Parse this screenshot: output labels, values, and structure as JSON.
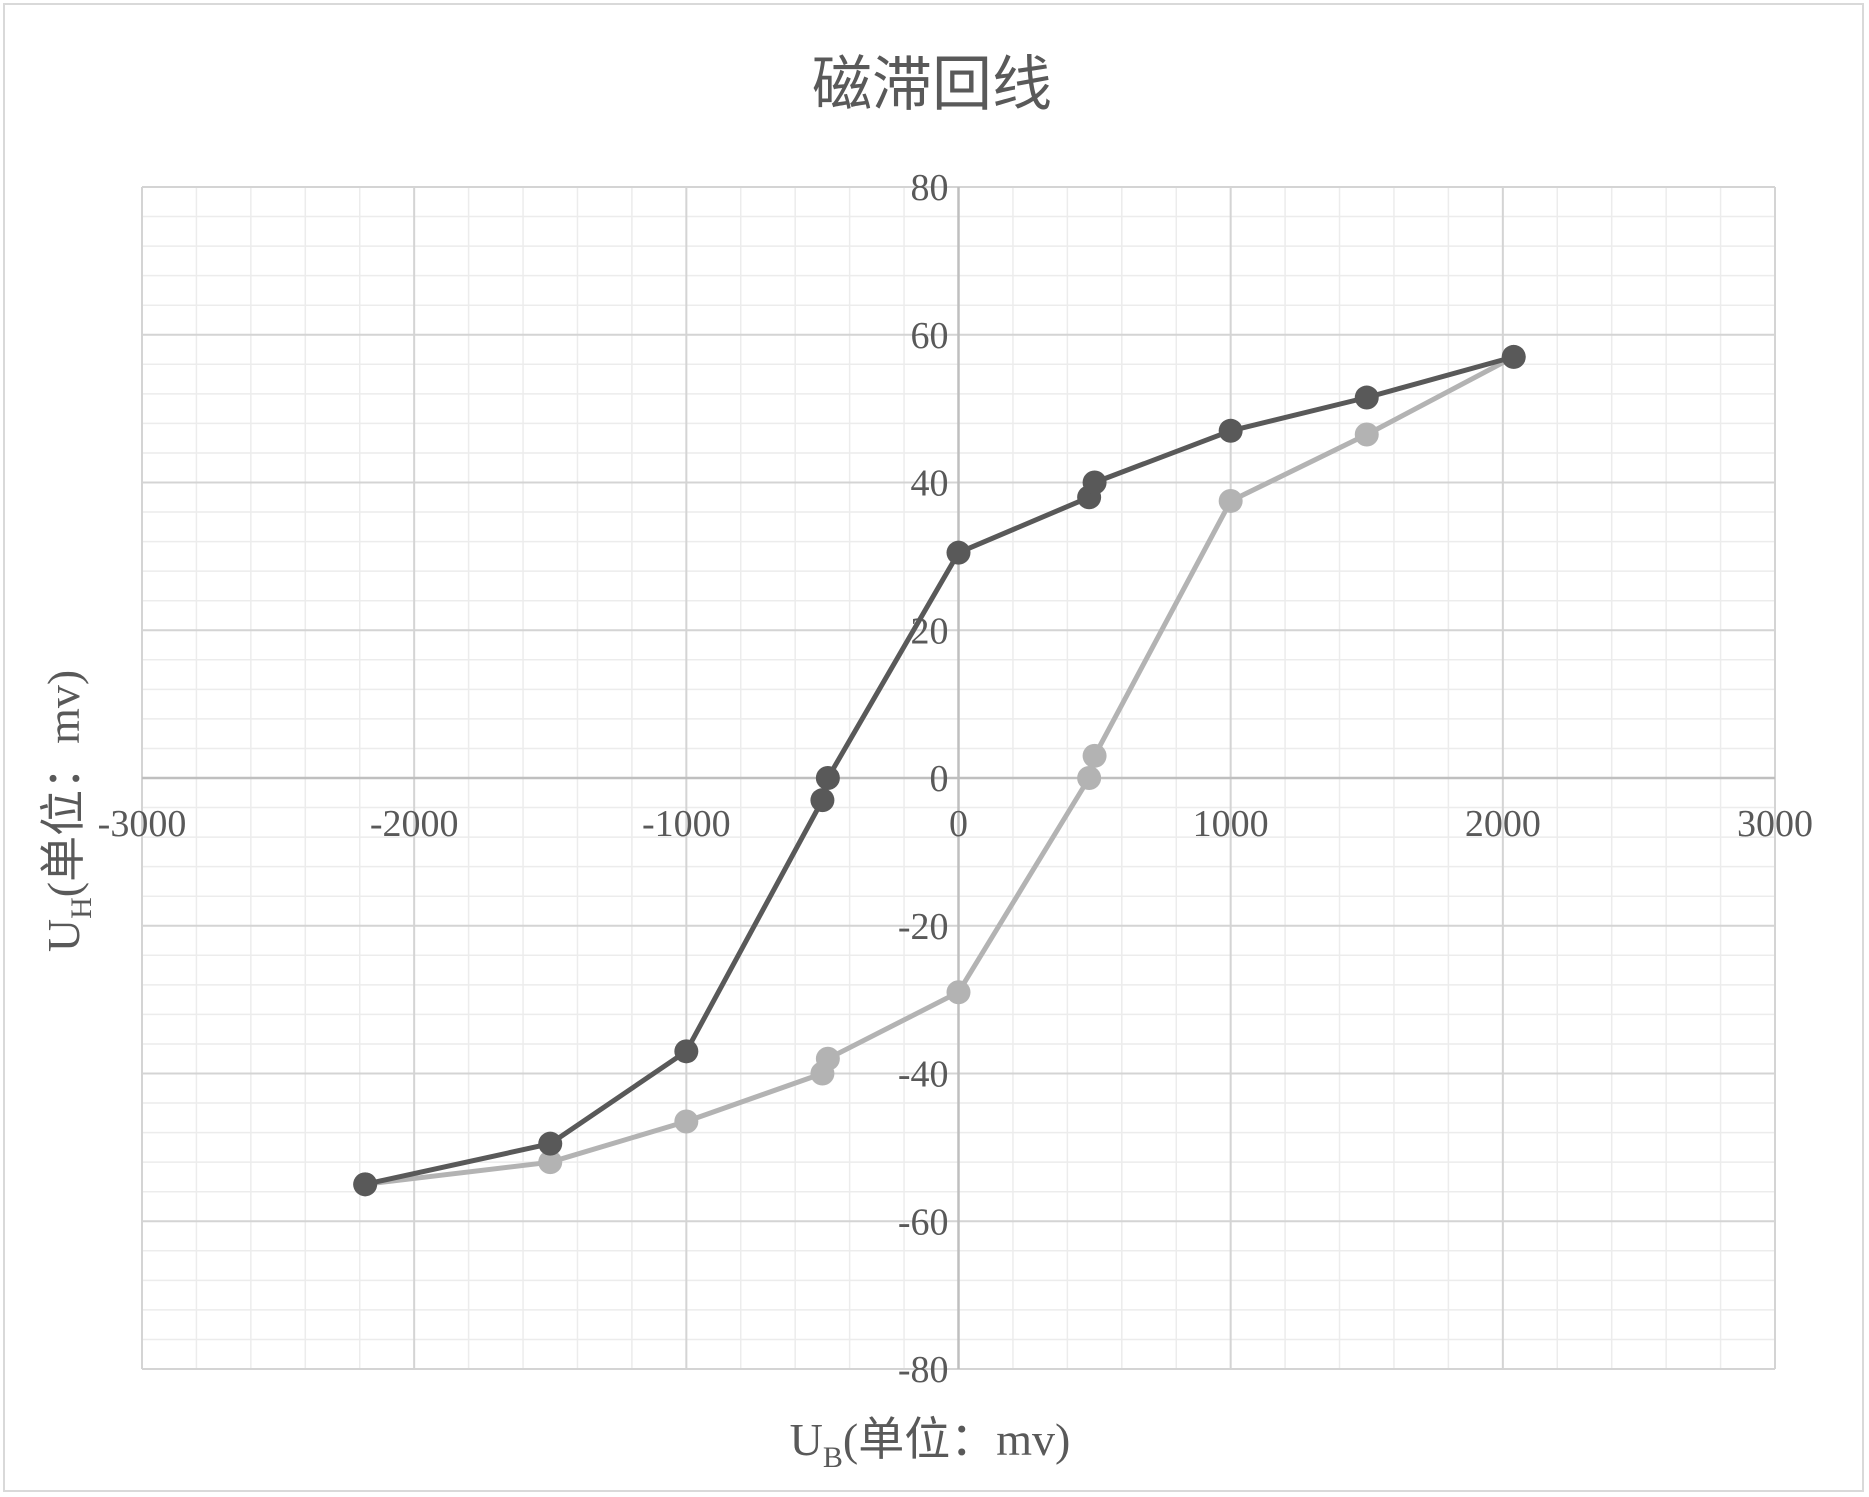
{
  "chart_data": {
    "type": "scatter",
    "title": "磁滞回线",
    "xlabel": {
      "main": "U",
      "sub": "B",
      "rest": "(单位：mv)"
    },
    "ylabel": {
      "main": "U",
      "sub": "H",
      "rest": "(单位：mv)"
    },
    "xlim": [
      -3000,
      3000
    ],
    "ylim": [
      -80,
      80
    ],
    "x_ticks": [
      -3000,
      -2000,
      -1000,
      0,
      1000,
      2000,
      3000
    ],
    "y_ticks": [
      80,
      60,
      40,
      20,
      0,
      -20,
      -40,
      -60,
      -80
    ],
    "grid": true,
    "legend": "none",
    "series": [
      {
        "color": "#595959",
        "points": [
          [
            -2180,
            -55
          ],
          [
            -1500,
            -49.5
          ],
          [
            -1000,
            -37
          ],
          [
            -500,
            -3
          ],
          [
            -480,
            0
          ],
          [
            0,
            30.5
          ],
          [
            480,
            38
          ],
          [
            500,
            40
          ],
          [
            1000,
            47
          ],
          [
            1500,
            51.5
          ],
          [
            2040,
            57
          ]
        ]
      },
      {
        "color": "#b3b3b3",
        "points": [
          [
            -2180,
            -55
          ],
          [
            -1500,
            -52
          ],
          [
            -1000,
            -46.5
          ],
          [
            -500,
            -40
          ],
          [
            -480,
            -38
          ],
          [
            0,
            -29
          ],
          [
            480,
            0
          ],
          [
            500,
            3
          ],
          [
            1000,
            37.5
          ],
          [
            1500,
            46.5
          ],
          [
            2040,
            57
          ]
        ]
      }
    ]
  }
}
